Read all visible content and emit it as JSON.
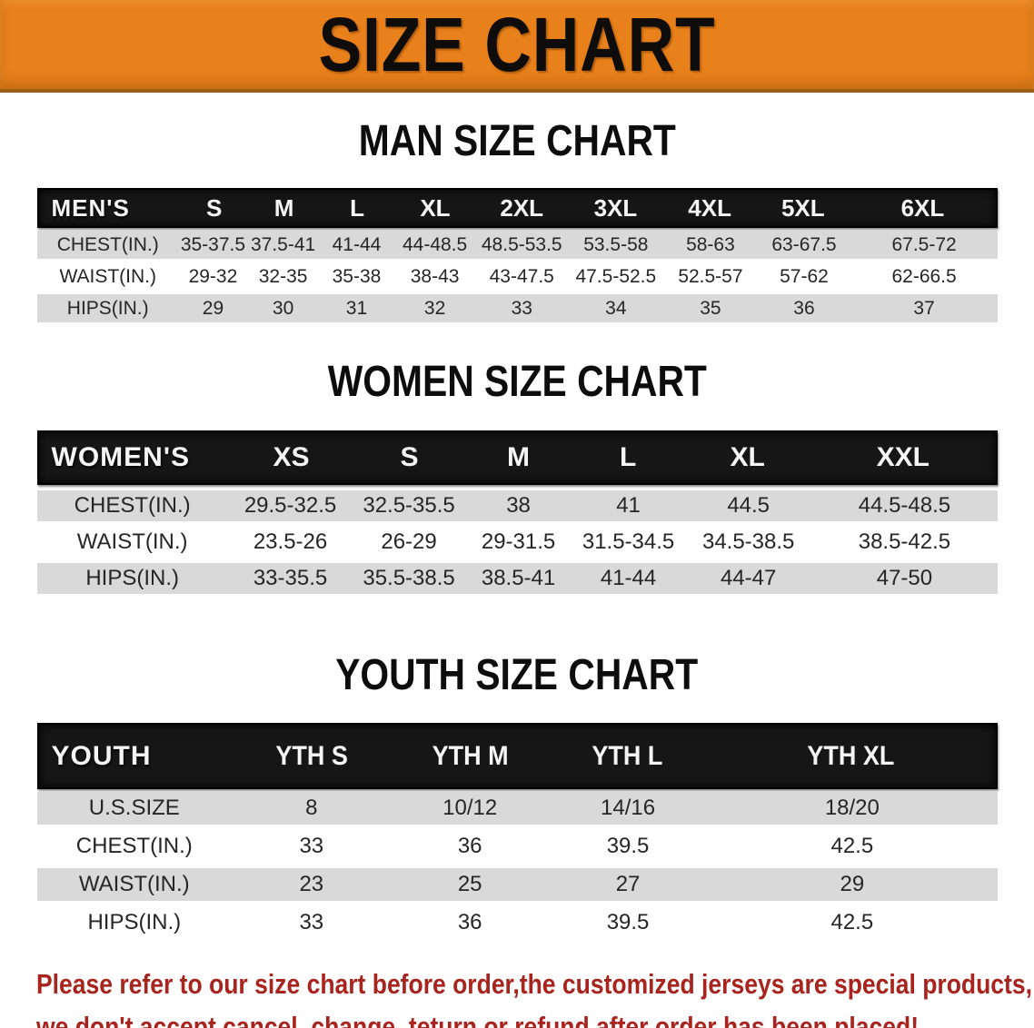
{
  "banner": {
    "title": "SIZE CHART",
    "bg_color": "#e8801b"
  },
  "men": {
    "title": "MAN SIZE CHART",
    "label": "MEN'S",
    "cols": [
      "S",
      "M",
      "L",
      "XL",
      "2XL",
      "3XL",
      "4XL",
      "5XL",
      "6XL"
    ],
    "chest": {
      "label": "CHEST(IN.)",
      "values": [
        "35-37.5",
        "37.5-41",
        "41-44",
        "44-48.5",
        "48.5-53.5",
        "53.5-58",
        "58-63",
        "63-67.5",
        "67.5-72"
      ]
    },
    "waist": {
      "label": "WAIST(IN.)",
      "values": [
        "29-32",
        "32-35",
        "35-38",
        "38-43",
        "43-47.5",
        "47.5-52.5",
        "52.5-57",
        "57-62",
        "62-66.5"
      ]
    },
    "hips": {
      "label": "HIPS(IN.)",
      "values": [
        "29",
        "30",
        "31",
        "32",
        "33",
        "34",
        "35",
        "36",
        "37"
      ]
    }
  },
  "women": {
    "title": "WOMEN SIZE CHART",
    "label": "WOMEN'S",
    "cols": [
      "XS",
      "S",
      "M",
      "L",
      "XL",
      "XXL"
    ],
    "chest": {
      "label": "CHEST(IN.)",
      "values": [
        "29.5-32.5",
        "32.5-35.5",
        "38",
        "41",
        "44.5",
        "44.5-48.5"
      ]
    },
    "waist": {
      "label": "WAIST(IN.)",
      "values": [
        "23.5-26",
        "26-29",
        "29-31.5",
        "31.5-34.5",
        "34.5-38.5",
        "38.5-42.5"
      ]
    },
    "hips": {
      "label": "HIPS(IN.)",
      "values": [
        "33-35.5",
        "35.5-38.5",
        "38.5-41",
        "41-44",
        "44-47",
        "47-50"
      ]
    }
  },
  "youth": {
    "title": "YOUTH SIZE CHART",
    "label": "YOUTH",
    "cols": [
      "YTH S",
      "YTH M",
      "YTH L",
      "YTH XL"
    ],
    "ussize": {
      "label": "U.S.SIZE",
      "values": [
        "8",
        "10/12",
        "14/16",
        "18/20"
      ]
    },
    "chest": {
      "label": "CHEST(IN.)",
      "values": [
        "33",
        "36",
        "39.5",
        "42.5"
      ]
    },
    "waist": {
      "label": "WAIST(IN.)",
      "values": [
        "23",
        "25",
        "27",
        "29"
      ]
    },
    "hips": {
      "label": "HIPS(IN.)",
      "values": [
        "33",
        "36",
        "39.5",
        "42.5"
      ]
    }
  },
  "disclaimer": {
    "color": "#a8241e",
    "line1": "Please refer to our size chart before order,the customized jerseys are special products,",
    "line2": "we don't accept cancel, change, teturn or refund after order has been placed!"
  }
}
